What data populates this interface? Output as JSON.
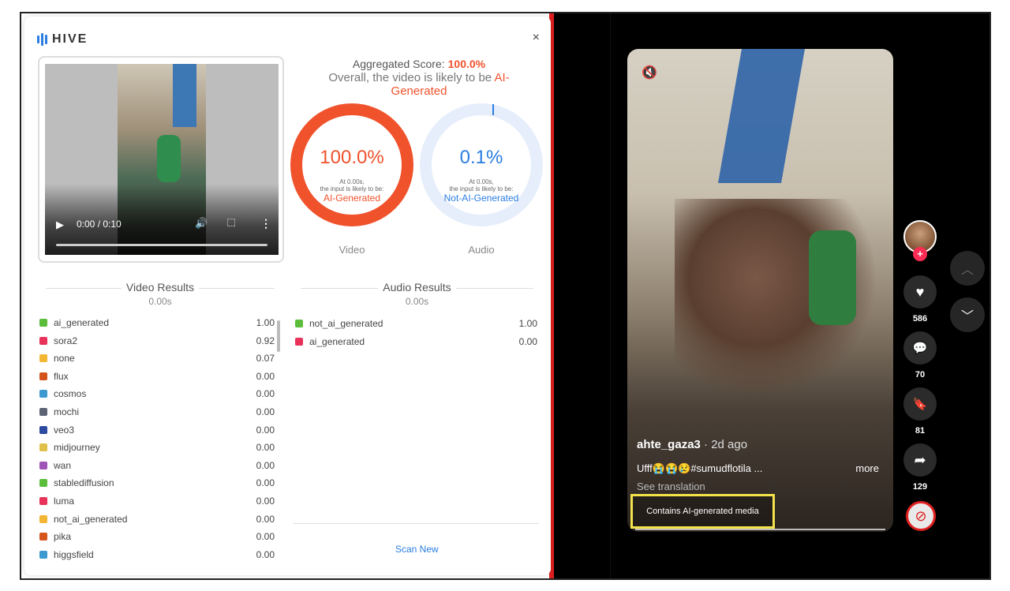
{
  "hive": {
    "brand": "HIVE",
    "close_glyph": "×",
    "player": {
      "time": "0:00 / 0:10",
      "play_glyph": "▶",
      "volume_glyph": "🔊",
      "more_glyph": "⋮"
    },
    "aggregate": {
      "label": "Aggregated Score:",
      "score": "100.0%",
      "overall_prefix": "Overall, the video is likely to be",
      "overall_verdict": "AI-Generated"
    },
    "gauges": [
      {
        "pct": "100.0%",
        "at": "At 0.00s,",
        "likely": "the input is likely to be:",
        "verdict": "AI-Generated",
        "label": "Video"
      },
      {
        "pct": "0.1%",
        "at": "At 0.00s,",
        "likely": "the input is likely to be:",
        "verdict": "Not-AI-Generated",
        "label": "Audio"
      }
    ],
    "video_results": {
      "title": "Video Results",
      "time": "0.00s",
      "rows": [
        {
          "name": "ai_generated",
          "value": "1.00",
          "color": "#5cbd3a"
        },
        {
          "name": "sora2",
          "value": "0.92",
          "color": "#e8325a"
        },
        {
          "name": "none",
          "value": "0.07",
          "color": "#f2b632"
        },
        {
          "name": "flux",
          "value": "0.00",
          "color": "#d5541c"
        },
        {
          "name": "cosmos",
          "value": "0.00",
          "color": "#3c9ad1"
        },
        {
          "name": "mochi",
          "value": "0.00",
          "color": "#5b6374"
        },
        {
          "name": "veo3",
          "value": "0.00",
          "color": "#2b4aa0"
        },
        {
          "name": "midjourney",
          "value": "0.00",
          "color": "#e0c04a"
        },
        {
          "name": "wan",
          "value": "0.00",
          "color": "#9f55b8"
        },
        {
          "name": "stablediffusion",
          "value": "0.00",
          "color": "#5cbd3a"
        },
        {
          "name": "luma",
          "value": "0.00",
          "color": "#e8325a"
        },
        {
          "name": "not_ai_generated",
          "value": "0.00",
          "color": "#f2b632"
        },
        {
          "name": "pika",
          "value": "0.00",
          "color": "#d5541c"
        },
        {
          "name": "higgsfield",
          "value": "0.00",
          "color": "#3c9ad1"
        }
      ]
    },
    "audio_results": {
      "title": "Audio Results",
      "time": "0.00s",
      "rows": [
        {
          "name": "not_ai_generated",
          "value": "1.00",
          "color": "#5cbd3a"
        },
        {
          "name": "ai_generated",
          "value": "0.00",
          "color": "#e8325a"
        }
      ]
    },
    "scan_new": "Scan New"
  },
  "tiktok": {
    "mute_glyph": "🔇",
    "username": "ahte_gaza3",
    "ago": " · 2d ago",
    "caption": "Ufff😭😭😢#sumudflotila ...",
    "more": "more",
    "see_translation": "See translation",
    "ai_label": "Contains AI-generated media",
    "likes": "586",
    "comments": "70",
    "saves": "81",
    "shares": "129",
    "plus_glyph": "+",
    "heart_glyph": "♥",
    "comment_glyph": "💬",
    "bookmark_glyph": "🔖",
    "share_glyph": "➦",
    "nope_glyph": "⊘",
    "up_glyph": "︿",
    "down_glyph": "﹀"
  }
}
